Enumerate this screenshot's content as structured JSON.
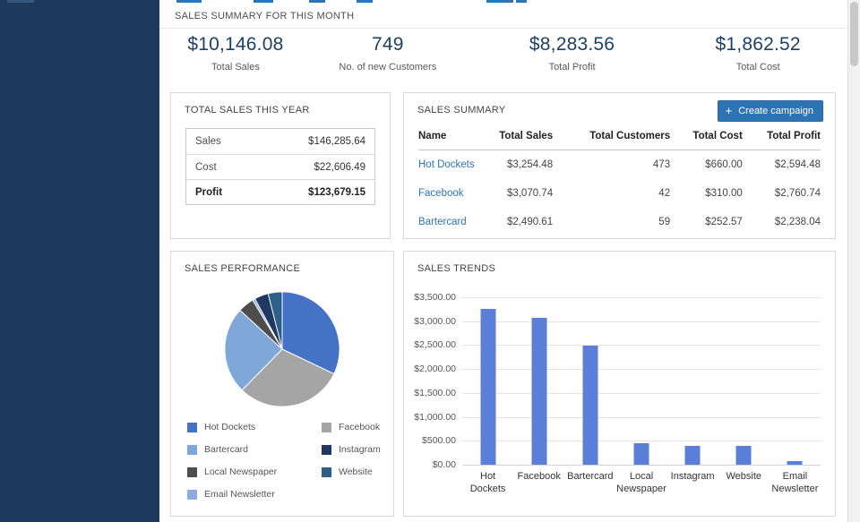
{
  "colors": {
    "sidebar": "#1b3a5c",
    "accent_blue": "#2e74b5",
    "stat_value_blue": "#1c4263"
  },
  "month_summary": {
    "title": "SALES SUMMARY FOR THIS MONTH",
    "stats": [
      {
        "value": "$10,146.08",
        "label": "Total Sales"
      },
      {
        "value": "749",
        "label": "No. of new Customers"
      },
      {
        "value": "$8,283.56",
        "label": "Total Profit"
      },
      {
        "value": "$1,862.52",
        "label": "Total Cost"
      }
    ]
  },
  "total_sales_year": {
    "title": "TOTAL SALES THIS YEAR",
    "rows": [
      {
        "label": "Sales",
        "value": "$146,285.64",
        "bold": false
      },
      {
        "label": "Cost",
        "value": "$22,606.49",
        "bold": false
      },
      {
        "label": "Profit",
        "value": "$123,679.15",
        "bold": true
      }
    ]
  },
  "sales_summary": {
    "title": "SALES SUMMARY",
    "create_button": {
      "label": "Create campaign",
      "icon_glyph": "+",
      "color": "#2e74b5"
    },
    "columns": [
      "Name",
      "Total Sales",
      "Total Customers",
      "Total Cost",
      "Total Profit"
    ],
    "rows": [
      [
        "Hot Dockets",
        "$3,254.48",
        "473",
        "$660.00",
        "$2,594.48"
      ],
      [
        "Facebook",
        "$3,070.74",
        "42",
        "$310.00",
        "$2,760.74"
      ],
      [
        "Bartercard",
        "$2,490.61",
        "59",
        "$252.57",
        "$2,238.04"
      ]
    ]
  },
  "chart_data": [
    {
      "type": "pie",
      "title": "SALES PERFORMANCE",
      "legend_position": "bottom",
      "slices": [
        {
          "label": "Hot Dockets",
          "value": 3254.48,
          "color": "#4472c4"
        },
        {
          "label": "Facebook",
          "value": 3070.74,
          "color": "#a5a5a5"
        },
        {
          "label": "Bartercard",
          "value": 2490.61,
          "color": "#7fa8d9"
        },
        {
          "label": "Local Newspaper",
          "value": 455,
          "color": "#4d4d4d"
        },
        {
          "label": "Email Newsletter",
          "value": 75,
          "color": "#8faadc"
        },
        {
          "label": "Instagram",
          "value": 400,
          "color": "#1f3864"
        },
        {
          "label": "Website",
          "value": 400,
          "color": "#2d5f8b"
        }
      ],
      "legend_columns": [
        [
          0,
          2,
          3,
          4
        ],
        [
          1,
          5,
          6
        ]
      ]
    },
    {
      "type": "bar",
      "title": "SALES TRENDS",
      "categories": [
        "Hot Dockets",
        "Facebook",
        "Bartercard",
        "Local Newspaper",
        "Instagram",
        "Website",
        "Email Newsletter"
      ],
      "values": [
        3254.48,
        3070.74,
        2490.61,
        455,
        400,
        400,
        75
      ],
      "bar_color": "#5b7fd9",
      "ylim": [
        0,
        3500
      ],
      "grid": true,
      "yticks": [
        {
          "value": 0,
          "label": "$0.00"
        },
        {
          "value": 500,
          "label": "$500.00"
        },
        {
          "value": 1000,
          "label": "$1,000.00"
        },
        {
          "value": 1500,
          "label": "$1,500.00"
        },
        {
          "value": 2000,
          "label": "$2,000.00"
        },
        {
          "value": 2500,
          "label": "$2,500.00"
        },
        {
          "value": 3000,
          "label": "$3,000.00"
        },
        {
          "value": 3500,
          "label": "$3,500.00"
        }
      ]
    }
  ]
}
